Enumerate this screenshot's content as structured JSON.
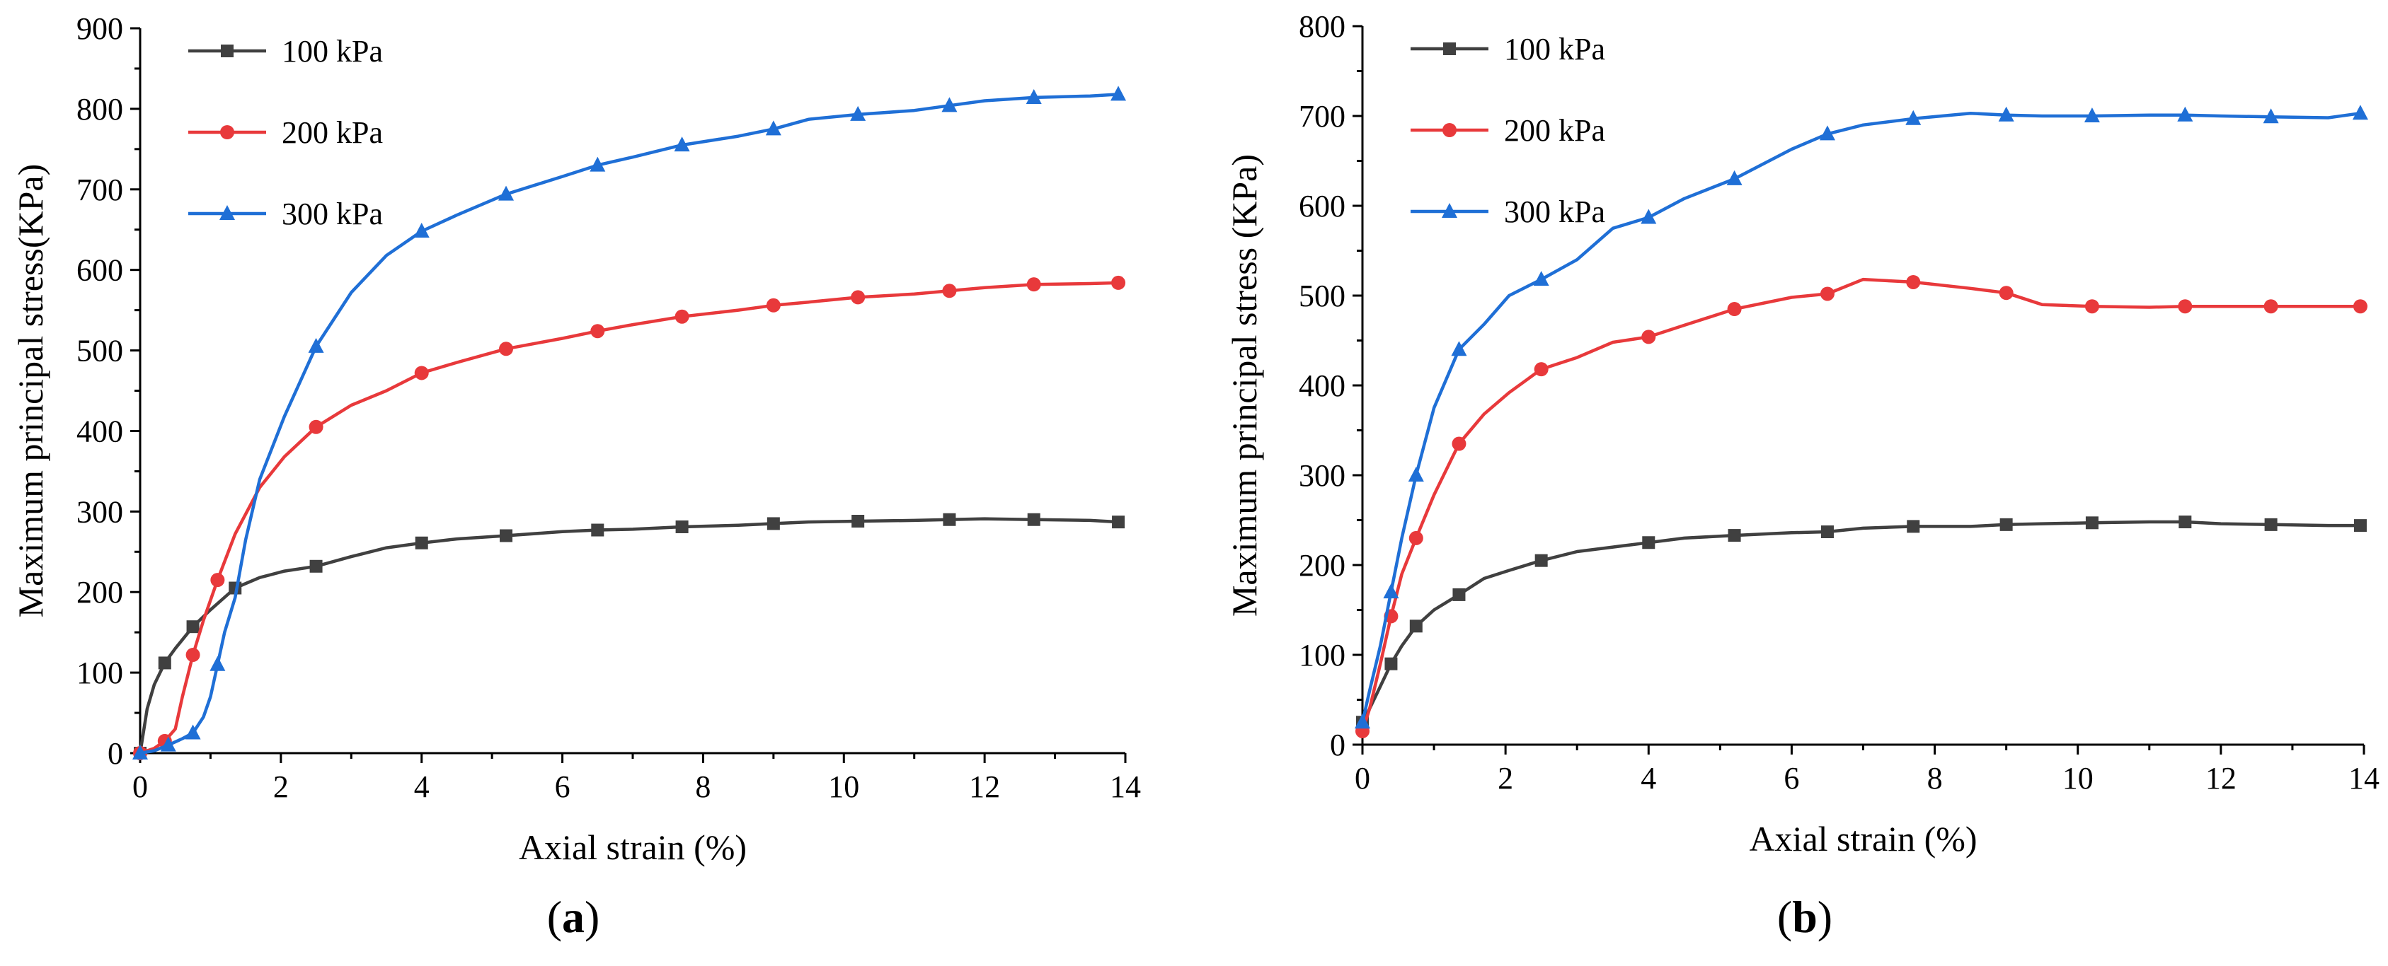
{
  "colors": {
    "100 kPa": "#404040",
    "200 kPa": "#e8393b",
    "300 kPa": "#1f6fd6"
  },
  "chart_data": [
    {
      "type": "line",
      "panel_label": "a",
      "xlabel": "Axial strain (%)",
      "ylabel": "Maximum principal stress(KPa)",
      "xlim": [
        0,
        14
      ],
      "ylim": [
        0,
        900
      ],
      "xticks": [
        0,
        2,
        4,
        6,
        8,
        10,
        12,
        14
      ],
      "yticks": [
        0,
        100,
        200,
        300,
        400,
        500,
        600,
        700,
        800,
        900
      ],
      "legend_position": "top-left",
      "series": [
        {
          "name": "100 kPa",
          "marker": "square",
          "x": [
            0,
            0.1,
            0.2,
            0.35,
            0.5,
            0.75,
            1.0,
            1.35,
            1.7,
            2.05,
            2.5,
            3.0,
            3.5,
            4.0,
            4.5,
            5.2,
            6.0,
            6.5,
            7.0,
            7.7,
            8.5,
            9.0,
            9.5,
            10.2,
            11.0,
            11.5,
            12.0,
            12.7,
            13.5,
            13.9
          ],
          "y": [
            0,
            55,
            85,
            112,
            130,
            157,
            178,
            205,
            218,
            226,
            232,
            244,
            255,
            261,
            266,
            270,
            275,
            277,
            278,
            281,
            283,
            285,
            287,
            288,
            289,
            290,
            291,
            290,
            289,
            287
          ]
        },
        {
          "name": "200 kPa",
          "marker": "circle",
          "x": [
            0,
            0.1,
            0.2,
            0.35,
            0.5,
            0.6,
            0.75,
            0.9,
            1.1,
            1.35,
            1.7,
            2.05,
            2.5,
            3.0,
            3.5,
            4.0,
            4.5,
            5.2,
            6.0,
            6.5,
            7.0,
            7.7,
            8.5,
            9.0,
            9.5,
            10.2,
            11.0,
            11.5,
            12.0,
            12.7,
            13.5,
            13.9
          ],
          "y": [
            0,
            3,
            6,
            15,
            30,
            70,
            122,
            165,
            215,
            272,
            330,
            368,
            405,
            432,
            450,
            472,
            485,
            502,
            515,
            524,
            532,
            542,
            550,
            556,
            560,
            566,
            570,
            574,
            578,
            582,
            583,
            584
          ]
        },
        {
          "name": "300 kPa",
          "marker": "triangle",
          "x": [
            0,
            0.2,
            0.4,
            0.6,
            0.75,
            0.9,
            1.0,
            1.1,
            1.2,
            1.35,
            1.5,
            1.7,
            2.05,
            2.5,
            3.0,
            3.5,
            4.0,
            4.5,
            5.2,
            6.0,
            6.5,
            7.0,
            7.7,
            8.5,
            9.0,
            9.5,
            10.2,
            11.0,
            11.5,
            12.0,
            12.7,
            13.5,
            13.9
          ],
          "y": [
            0,
            3,
            10,
            18,
            25,
            45,
            70,
            110,
            150,
            193,
            265,
            340,
            418,
            505,
            572,
            618,
            648,
            668,
            694,
            716,
            730,
            740,
            755,
            766,
            775,
            787,
            793,
            798,
            804,
            810,
            814,
            816,
            818
          ]
        }
      ]
    },
    {
      "type": "line",
      "panel_label": "b",
      "xlabel": "Axial strain (%)",
      "ylabel": "Maximum principal stress (KPa)",
      "xlim": [
        0,
        14
      ],
      "ylim": [
        0,
        800
      ],
      "xticks": [
        0,
        2,
        4,
        6,
        8,
        10,
        12,
        14
      ],
      "yticks": [
        0,
        100,
        200,
        300,
        400,
        500,
        600,
        700,
        800
      ],
      "legend_position": "top-left",
      "series": [
        {
          "name": "100 kPa",
          "marker": "square",
          "x": [
            0,
            0.1,
            0.25,
            0.4,
            0.55,
            0.75,
            1.0,
            1.35,
            1.7,
            2.05,
            2.5,
            3.0,
            3.5,
            4.0,
            4.5,
            5.2,
            6.0,
            6.5,
            7.0,
            7.7,
            8.5,
            9.0,
            9.5,
            10.2,
            11.0,
            11.5,
            12.0,
            12.7,
            13.5,
            13.95
          ],
          "y": [
            25,
            40,
            65,
            90,
            110,
            132,
            150,
            167,
            185,
            194,
            205,
            215,
            220,
            225,
            230,
            233,
            236,
            237,
            241,
            243,
            243,
            245,
            246,
            247,
            248,
            248,
            246,
            245,
            244,
            244
          ]
        },
        {
          "name": "200 kPa",
          "marker": "circle",
          "x": [
            0,
            0.1,
            0.25,
            0.4,
            0.55,
            0.75,
            1.0,
            1.35,
            1.7,
            2.05,
            2.5,
            3.0,
            3.5,
            4.0,
            4.5,
            5.2,
            6.0,
            6.5,
            7.0,
            7.7,
            8.5,
            9.0,
            9.5,
            10.2,
            11.0,
            11.5,
            12.0,
            12.7,
            13.5,
            13.95
          ],
          "y": [
            15,
            40,
            90,
            143,
            190,
            230,
            278,
            335,
            368,
            392,
            418,
            431,
            448,
            454,
            467,
            485,
            498,
            502,
            518,
            515,
            508,
            503,
            490,
            488,
            487,
            488,
            488,
            488,
            488,
            488
          ]
        },
        {
          "name": "300 kPa",
          "marker": "triangle",
          "x": [
            0,
            0.1,
            0.25,
            0.4,
            0.55,
            0.75,
            1.0,
            1.35,
            1.7,
            2.05,
            2.5,
            3.0,
            3.5,
            4.0,
            4.5,
            5.2,
            6.0,
            6.5,
            7.0,
            7.7,
            8.5,
            9.0,
            9.5,
            10.2,
            11.0,
            11.5,
            12.0,
            12.7,
            13.5,
            13.95
          ],
          "y": [
            25,
            60,
            110,
            170,
            230,
            300,
            375,
            440,
            468,
            500,
            518,
            540,
            575,
            587,
            608,
            630,
            663,
            680,
            690,
            697,
            703,
            701,
            700,
            700,
            701,
            701,
            700,
            699,
            698,
            703
          ]
        }
      ]
    }
  ]
}
